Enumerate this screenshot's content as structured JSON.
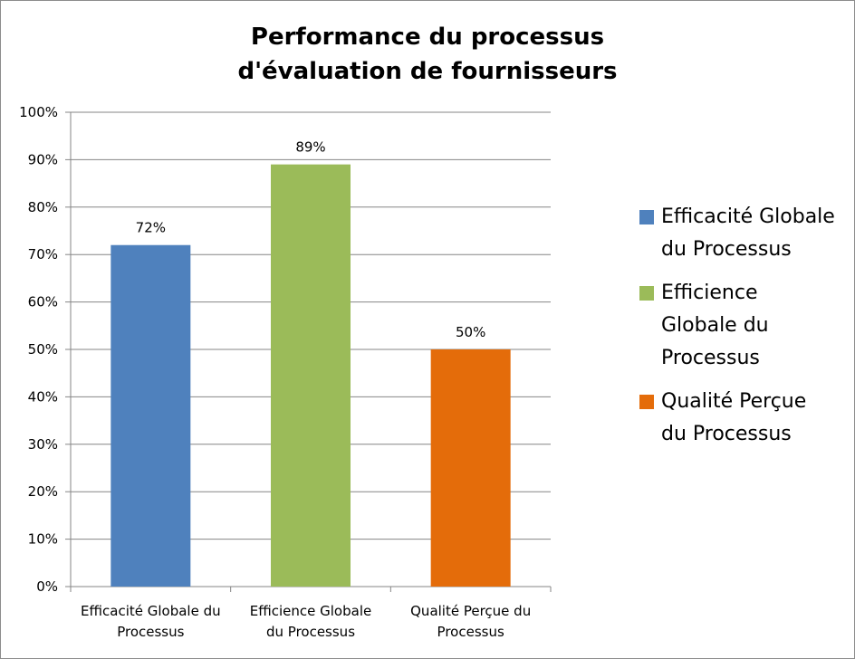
{
  "chart_data": {
    "type": "bar",
    "title_lines": [
      "Performance du processus",
      "d'évaluation de fournisseurs"
    ],
    "categories": [
      [
        "Efficacité Globale du",
        "Processus"
      ],
      [
        "Efficience Globale",
        "du Processus"
      ],
      [
        "Qualité Perçue du",
        "Processus"
      ]
    ],
    "values": [
      72,
      89,
      50
    ],
    "data_labels": [
      "72%",
      "89%",
      "50%"
    ],
    "colors": [
      "#4f81bd",
      "#9bbb59",
      "#e46c0a"
    ],
    "ylim": [
      0,
      100
    ],
    "yticks": [
      0,
      10,
      20,
      30,
      40,
      50,
      60,
      70,
      80,
      90,
      100
    ],
    "ytick_labels": [
      "0%",
      "10%",
      "20%",
      "30%",
      "40%",
      "50%",
      "60%",
      "70%",
      "80%",
      "90%",
      "100%"
    ],
    "grid": true,
    "legend_position": "right",
    "legend": [
      {
        "lines": [
          "Efficacité Globale",
          "du Processus"
        ],
        "color": "#4f81bd"
      },
      {
        "lines": [
          "Efficience",
          "Globale du",
          "Processus"
        ],
        "color": "#9bbb59"
      },
      {
        "lines": [
          "Qualité Perçue",
          "du Processus"
        ],
        "color": "#e46c0a"
      }
    ],
    "xlabel": "",
    "ylabel": ""
  }
}
